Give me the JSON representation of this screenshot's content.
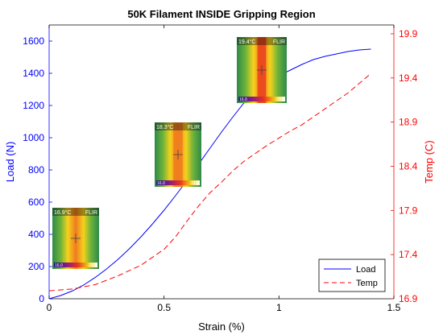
{
  "colors": {
    "load": "#0000ff",
    "temp": "#ff0000",
    "axis": "#000000",
    "thermal_bg": "#2f8a49",
    "thermal_band": "#f4d21c",
    "thermal_core": "#f07c1f",
    "thermal_hot": "#e8351c"
  },
  "chart_data": {
    "type": "line",
    "title": "50K Filament INSIDE Gripping Region",
    "xlabel": "Strain (%)",
    "ylabel_left": "Load (N)",
    "ylabel_right": "Temp (C)",
    "xlim": [
      0,
      1.5
    ],
    "ylim_left": [
      0,
      1700
    ],
    "ylim_right": [
      16.9,
      20.0
    ],
    "x_ticks": [
      "0",
      "0.5",
      "1",
      "1.5"
    ],
    "y_left_ticks": [
      "0",
      "200",
      "400",
      "600",
      "800",
      "1000",
      "1200",
      "1400",
      "1600"
    ],
    "y_right_ticks": [
      "16.9",
      "17.4",
      "17.9",
      "18.4",
      "18.9",
      "19.4",
      "19.9"
    ],
    "legend_position": "bottom-right",
    "series": [
      {
        "name": "Load",
        "axis": "left",
        "style": "solid",
        "x": [
          0,
          0.05,
          0.1,
          0.15,
          0.2,
          0.25,
          0.3,
          0.35,
          0.4,
          0.45,
          0.5,
          0.55,
          0.6,
          0.65,
          0.7,
          0.75,
          0.8,
          0.85,
          0.9,
          0.95,
          1.0,
          1.05,
          1.1,
          1.15,
          1.2,
          1.25,
          1.3,
          1.35,
          1.4
        ],
        "values": [
          0,
          20,
          48,
          85,
          132,
          185,
          245,
          312,
          385,
          465,
          550,
          640,
          735,
          835,
          935,
          1035,
          1130,
          1220,
          1290,
          1345,
          1385,
          1420,
          1455,
          1485,
          1505,
          1520,
          1535,
          1545,
          1550
        ]
      },
      {
        "name": "Temp",
        "axis": "right",
        "style": "dashed",
        "x": [
          0,
          0.1,
          0.2,
          0.3,
          0.4,
          0.5,
          0.55,
          0.6,
          0.65,
          0.7,
          0.75,
          0.8,
          0.85,
          0.9,
          0.95,
          1.0,
          1.05,
          1.1,
          1.15,
          1.2,
          1.25,
          1.3,
          1.35,
          1.4
        ],
        "values": [
          16.99,
          17.01,
          17.06,
          17.16,
          17.28,
          17.46,
          17.6,
          17.78,
          17.95,
          18.1,
          18.22,
          18.35,
          18.46,
          18.55,
          18.64,
          18.72,
          18.8,
          18.87,
          18.96,
          19.05,
          19.14,
          19.23,
          19.34,
          19.45
        ]
      }
    ]
  },
  "thermal_images": [
    {
      "id": "thermal-1",
      "temp": "16.9",
      "unit": "°C",
      "brand": "FLIR",
      "scale_lo": "16.0",
      "scale_hi": "21.0"
    },
    {
      "id": "thermal-2",
      "temp": "18.3",
      "unit": "°C",
      "brand": "FLIR",
      "scale_lo": "16.0",
      "scale_hi": "21.0"
    },
    {
      "id": "thermal-3",
      "temp": "19.4",
      "unit": "°C",
      "brand": "FLIR",
      "scale_lo": "16.0",
      "scale_hi": "21.0"
    }
  ]
}
